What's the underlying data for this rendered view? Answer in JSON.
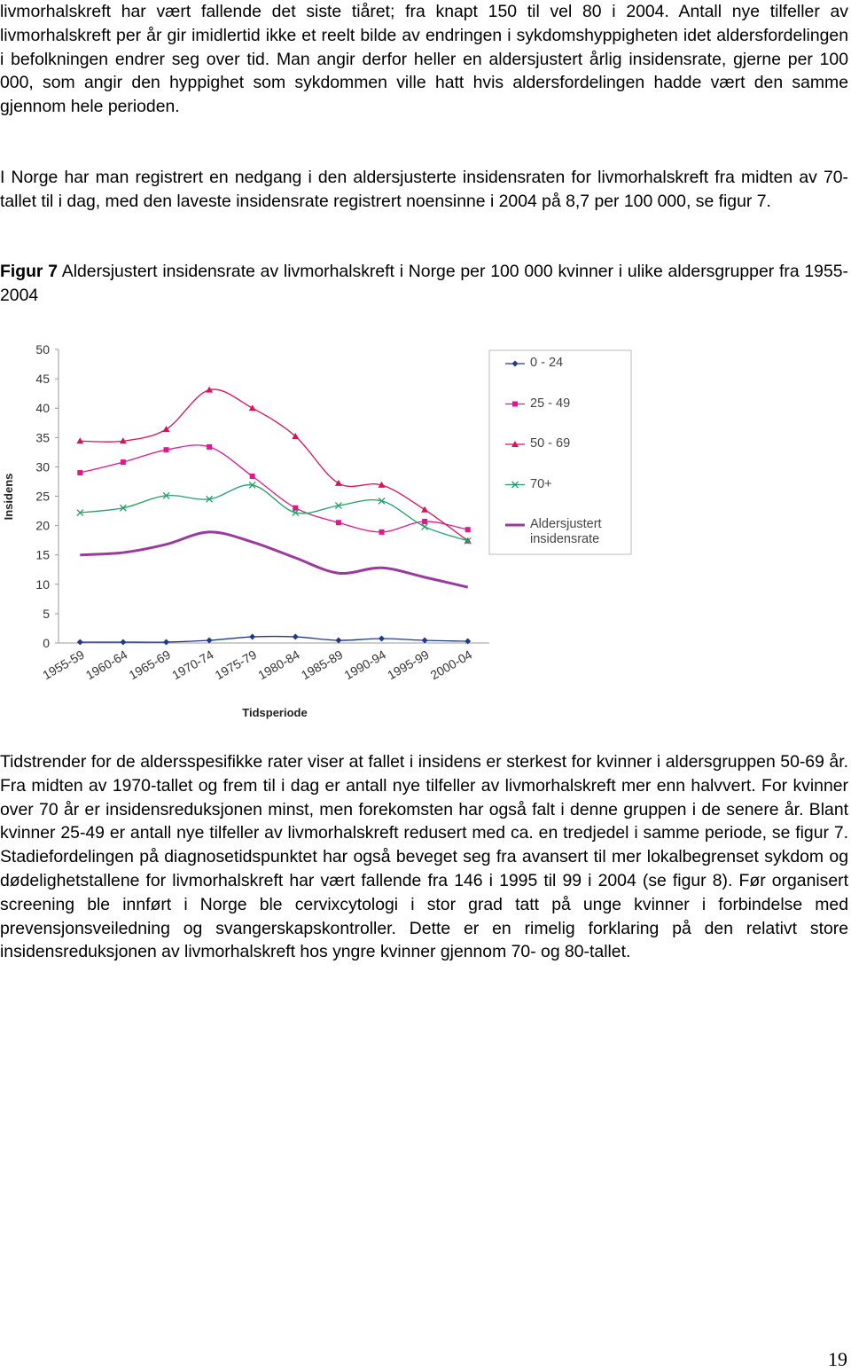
{
  "paragraphs": [
    "livmorhalskreft har vært fallende det siste tiåret; fra knapt 150 til vel 80 i 2004. Antall nye tilfeller av livmorhalskreft per år gir imidlertid ikke et reelt bilde av endringen i sykdomshyppigheten idet aldersfordelingen i befolkningen endrer seg over tid. Man angir derfor heller en aldersjustert årlig insidensrate, gjerne per 100 000, som angir den hyppighet som sykdommen ville hatt hvis aldersfordelingen hadde vært den samme gjennom hele perioden.",
    "I Norge har man registrert en nedgang i den aldersjusterte insidensraten for livmorhalskreft fra midten av 70-tallet til i dag, med den laveste insidensrate registrert noensinne i 2004 på 8,7 per 100 000, se figur 7."
  ],
  "caption": {
    "label": "Figur 7",
    "text": "Aldersjustert insidensrate av livmorhalskreft i Norge per 100 000 kvinner i ulike aldersgrupper fra 1955-2004"
  },
  "chart_data": {
    "type": "line",
    "x_label": "Tidsperiode",
    "y_label": "Insidens",
    "categories": [
      "1955-59",
      "1960-64",
      "1965-69",
      "1970-74",
      "1975-79",
      "1980-84",
      "1985-89",
      "1990-94",
      "1995-99",
      "2000-04"
    ],
    "ylim": [
      0,
      50
    ],
    "yticks": [
      0,
      5,
      10,
      15,
      20,
      25,
      30,
      35,
      40,
      45,
      50
    ],
    "grid": false,
    "legend": "right",
    "series": [
      {
        "name": "0 - 24",
        "color": "#1f3a8a",
        "marker": "diamond",
        "values": [
          0.15,
          0.15,
          0.15,
          0.45,
          1.05,
          1.05,
          0.45,
          0.75,
          0.45,
          0.3
        ]
      },
      {
        "name": "25 - 49",
        "color": "#e0188c",
        "marker": "square",
        "values": [
          29.0,
          30.8,
          32.9,
          33.4,
          28.4,
          23.0,
          20.5,
          18.9,
          20.7,
          19.3
        ]
      },
      {
        "name": "50 - 69",
        "color": "#d6135b",
        "marker": "triangle",
        "values": [
          34.4,
          34.4,
          36.4,
          43.1,
          40.0,
          35.2,
          27.2,
          26.9,
          22.7,
          17.4
        ]
      },
      {
        "name": "70+",
        "color": "#1fa066",
        "marker": "x",
        "values": [
          22.2,
          23.0,
          25.1,
          24.5,
          26.9,
          22.2,
          23.4,
          24.2,
          19.8,
          17.4
        ]
      },
      {
        "name": "Aldersjustert insidensrate",
        "color": "#9b3a9e",
        "marker": "none",
        "values": [
          15.0,
          15.4,
          16.8,
          18.9,
          17.2,
          14.5,
          11.9,
          12.8,
          11.2,
          9.5
        ]
      }
    ]
  },
  "paragraphs_after": [
    "Tidstrender for de aldersspesifikke rater viser at fallet i insidens er sterkest for kvinner i aldersgruppen 50-69 år. Fra midten av 1970-tallet og frem til i dag er antall nye tilfeller av livmorhalskreft mer enn halvvert. For kvinner over 70 år er insidensreduksjonen minst, men forekomsten har også falt i denne gruppen i de senere år. Blant kvinner 25-49 er antall nye tilfeller av livmorhalskreft redusert med ca. en tredjedel i samme periode, se figur 7. Stadiefordelingen på diagnosetidspunktet har også beveget seg fra avansert til mer lokalbegrenset sykdom og dødelighetstallene for livmorhalskreft har vært fallende fra 146 i 1995 til 99 i 2004 (se figur 8). Før organisert screening ble innført i Norge ble cervixcytologi i stor grad tatt på unge kvinner i forbindelse med prevensjonsveiledning og svangerskapskontroller. Dette er en rimelig forklaring på den relativt store insidensreduksjonen av livmorhalskreft hos yngre kvinner gjennom 70- og 80-tallet."
  ],
  "page_number": "19"
}
